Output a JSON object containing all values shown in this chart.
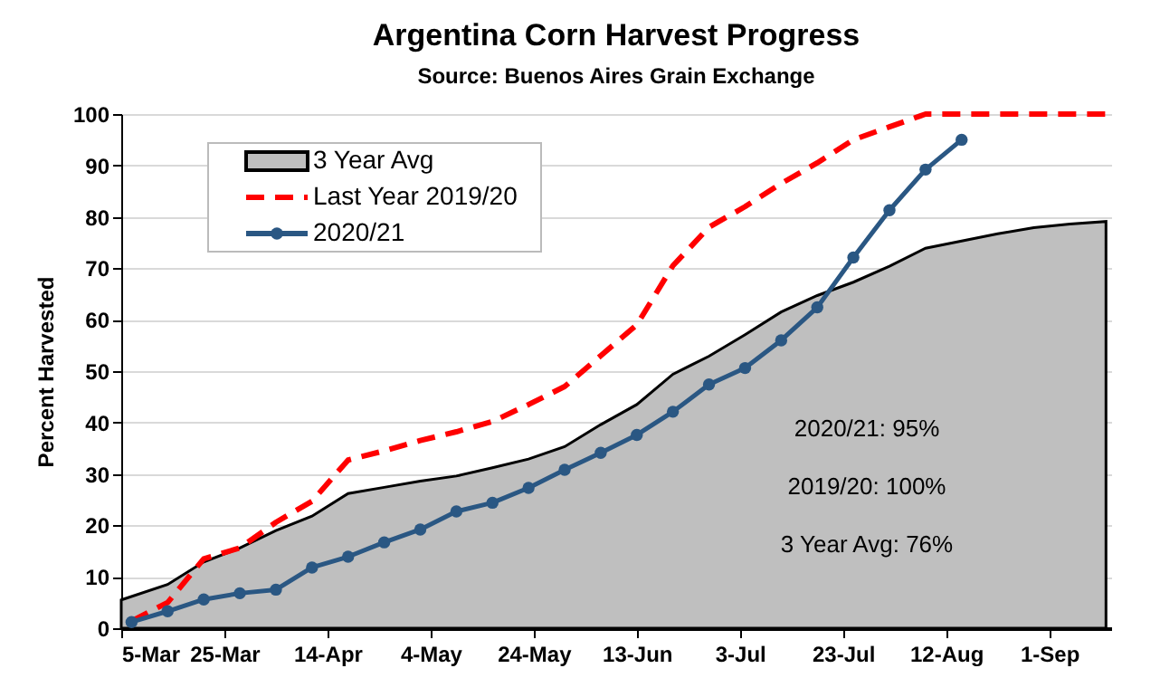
{
  "chart_data": {
    "type": "line",
    "title": "Argentina Corn Harvest Progress",
    "subtitle": "Source: Buenos Aires Grain Exchange",
    "ylabel": "Percent Harvested",
    "xlim": [
      "--03-05",
      "--09-13"
    ],
    "ylim": [
      0,
      100
    ],
    "yticks": [
      0,
      10,
      20,
      30,
      40,
      50,
      60,
      70,
      80,
      90,
      100
    ],
    "xticks": [
      {
        "value": "--03-05",
        "label": "5-Mar"
      },
      {
        "value": "--03-25",
        "label": "25-Mar"
      },
      {
        "value": "--04-14",
        "label": "14-Apr"
      },
      {
        "value": "--05-04",
        "label": "4-May"
      },
      {
        "value": "--05-24",
        "label": "24-May"
      },
      {
        "value": "--06-13",
        "label": "13-Jun"
      },
      {
        "value": "--07-03",
        "label": "3-Jul"
      },
      {
        "value": "--07-23",
        "label": "23-Jul"
      },
      {
        "value": "--08-12",
        "label": "12-Aug"
      },
      {
        "value": "--09-01",
        "label": "1-Sep"
      }
    ],
    "grid": "y",
    "legend": "top left",
    "series": [
      {
        "name": "3 Year Avg",
        "type": "area",
        "color": "#bfbfbf",
        "x": [
          "--03-05",
          "--03-14",
          "--03-21",
          "--03-28",
          "--04-04",
          "--04-11",
          "--04-18",
          "--04-25",
          "--05-02",
          "--05-09",
          "--05-16",
          "--05-23",
          "--05-30",
          "--06-06",
          "--06-13",
          "--06-20",
          "--06-27",
          "--07-04",
          "--07-11",
          "--07-18",
          "--07-25",
          "--08-01",
          "--08-08",
          "--08-15",
          "--08-22",
          "--08-29",
          "--09-05",
          "--09-12"
        ],
        "values": [
          5.5,
          8.5,
          12.9,
          15.6,
          19,
          21.8,
          26.2,
          27.4,
          28.6,
          29.6,
          31.2,
          32.9,
          35.3,
          39.6,
          43.5,
          49.4,
          52.9,
          57.1,
          61.5,
          64.7,
          67.3,
          70.4,
          73.9,
          75.3,
          76.7,
          77.9,
          78.6,
          79.1
        ]
      },
      {
        "name": "Last Year 2019/20",
        "color": "#ff0000",
        "line_style": "dashed",
        "marker": "none",
        "x": [
          "--03-07",
          "--03-14",
          "--03-21",
          "--03-28",
          "--04-04",
          "--04-11",
          "--04-18",
          "--04-25",
          "--05-02",
          "--05-09",
          "--05-16",
          "--05-23",
          "--05-30",
          "--06-06",
          "--06-13",
          "--06-20",
          "--06-27",
          "--07-04",
          "--07-11",
          "--07-18",
          "--07-25",
          "--08-01",
          "--08-08",
          "--08-15",
          "--08-22",
          "--08-29",
          "--09-05",
          "--09-12"
        ],
        "values": [
          1.4,
          5,
          13.5,
          15.6,
          20.6,
          24.7,
          32.7,
          34.5,
          36.5,
          38.2,
          40.2,
          43.5,
          47,
          53,
          59,
          70.5,
          78,
          82,
          86.5,
          90.5,
          95,
          97.5,
          100,
          100,
          100,
          100,
          100,
          100
        ]
      },
      {
        "name": "2020/21",
        "color": "#2a5783",
        "line_style": "solid",
        "marker": "circle",
        "x": [
          "--03-07",
          "--03-14",
          "--03-21",
          "--03-28",
          "--04-04",
          "--04-11",
          "--04-18",
          "--04-25",
          "--05-02",
          "--05-09",
          "--05-16",
          "--05-23",
          "--05-30",
          "--06-06",
          "--06-13",
          "--06-20",
          "--06-27",
          "--07-04",
          "--07-11",
          "--07-18",
          "--07-25",
          "--08-01",
          "--08-08",
          "--08-15"
        ],
        "values": [
          1.2,
          3.3,
          5.6,
          6.8,
          7.5,
          11.8,
          13.9,
          16.7,
          19.2,
          22.7,
          24.4,
          27.3,
          30.8,
          34.1,
          37.6,
          42.1,
          47.4,
          50.6,
          56,
          62.4,
          72.1,
          81.3,
          89.2,
          95
        ]
      }
    ],
    "annotations": [
      "2020/21:  95%",
      "2019/20:  100%",
      "3 Year Avg: 76%"
    ]
  }
}
